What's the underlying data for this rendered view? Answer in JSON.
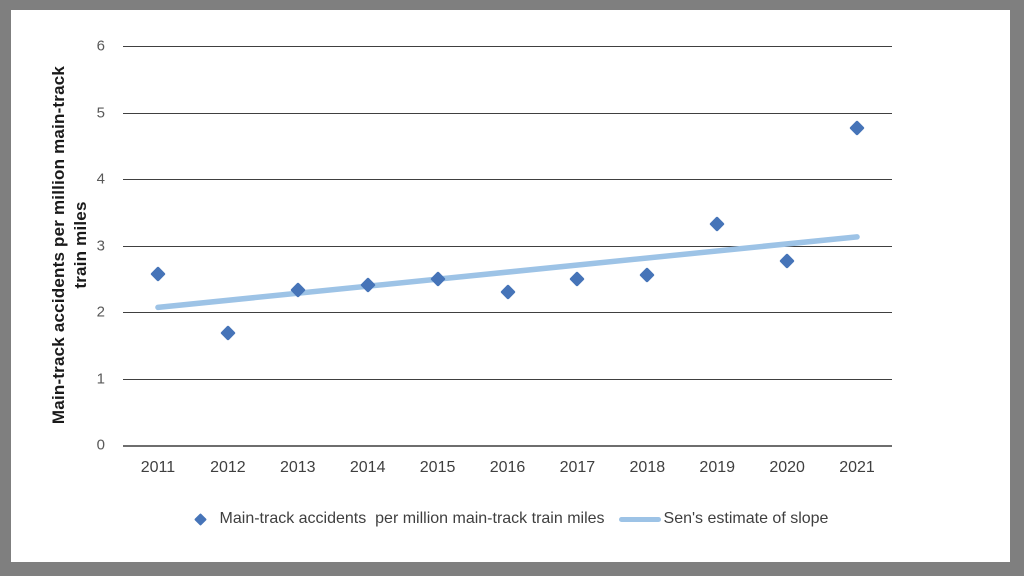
{
  "chart_data": {
    "type": "scatter",
    "title": "",
    "xlabel": "",
    "ylabel": "Main-track accidents per million main-track train miles",
    "ylabel_line1": "Main-track accidents per million main-track",
    "ylabel_line2": "train miles",
    "categories": [
      "2011",
      "2012",
      "2013",
      "2014",
      "2015",
      "2016",
      "2017",
      "2018",
      "2019",
      "2020",
      "2021"
    ],
    "series": [
      {
        "name": "Main-track accidents  per million main-track train miles",
        "type": "scatter",
        "marker": "diamond",
        "color": "#4674B8",
        "values": [
          2.57,
          1.69,
          2.33,
          2.41,
          2.5,
          2.3,
          2.49,
          2.56,
          3.33,
          2.77,
          4.77
        ]
      },
      {
        "name": "Sen's estimate of slope",
        "type": "line",
        "color": "#9DC3E6",
        "x": [
          "2011",
          "2021"
        ],
        "values": [
          2.07,
          3.13
        ]
      }
    ],
    "ylim": [
      0,
      6
    ],
    "yticks": [
      0,
      1,
      2,
      3,
      4,
      5,
      6
    ],
    "grid": true,
    "legend_position": "bottom"
  },
  "colors": {
    "marker_blue": "#4674B8",
    "trend_light_blue": "#9DC3E6",
    "frame_gray": "#7F7F7F",
    "gridline": "#404040",
    "axis_line": "#6E6E6E",
    "tick_text": "#595959",
    "label_text": "#3F3F3F"
  }
}
